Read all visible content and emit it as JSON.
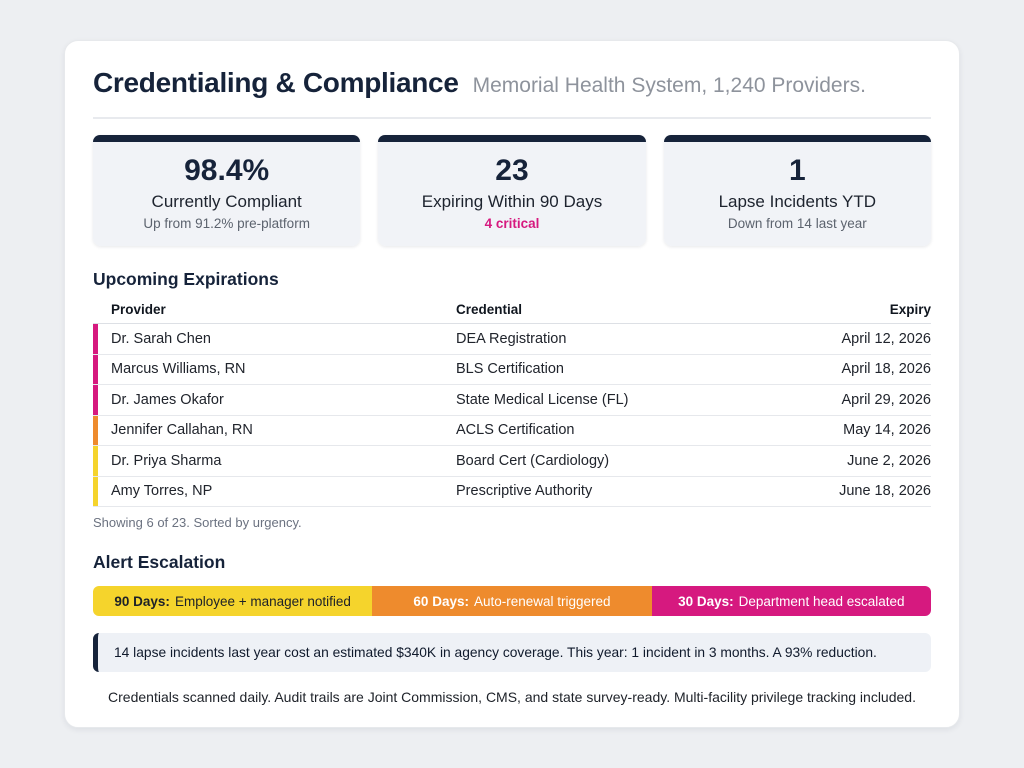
{
  "header": {
    "title": "Credentialing & Compliance",
    "subtitle": "Memorial Health System, 1,240 Providers."
  },
  "colors": {
    "navy": "#16233a",
    "pink": "#d6197f",
    "orange": "#ee8b2d",
    "yellow": "#f5d42c",
    "muted_gray": "#5c636e",
    "white": "#ffffff",
    "dark_text": "#1d2430"
  },
  "stats": [
    {
      "value": "98.4%",
      "label": "Currently Compliant",
      "note": "Up from 91.2% pre-platform",
      "note_color": "#5c636e"
    },
    {
      "value": "23",
      "label": "Expiring Within 90 Days",
      "note": "4 critical",
      "note_color": "#d6197f"
    },
    {
      "value": "1",
      "label": "Lapse Incidents YTD",
      "note": "Down from 14 last year",
      "note_color": "#5c636e"
    }
  ],
  "expirations": {
    "heading": "Upcoming Expirations",
    "columns": [
      "Provider",
      "Credential",
      "Expiry"
    ],
    "rows": [
      {
        "provider": "Dr. Sarah Chen",
        "credential": "DEA Registration",
        "expiry": "April 12, 2026",
        "accent": "#d6197f"
      },
      {
        "provider": "Marcus Williams, RN",
        "credential": "BLS Certification",
        "expiry": "April 18, 2026",
        "accent": "#d6197f"
      },
      {
        "provider": "Dr. James Okafor",
        "credential": "State Medical License (FL)",
        "expiry": "April 29, 2026",
        "accent": "#d6197f"
      },
      {
        "provider": "Jennifer Callahan, RN",
        "credential": "ACLS Certification",
        "expiry": "May 14, 2026",
        "accent": "#ee8b2d"
      },
      {
        "provider": "Dr. Priya Sharma",
        "credential": "Board Cert (Cardiology)",
        "expiry": "June 2, 2026",
        "accent": "#f5d42c"
      },
      {
        "provider": "Amy Torres, NP",
        "credential": "Prescriptive Authority",
        "expiry": "June 18, 2026",
        "accent": "#f5d42c"
      }
    ],
    "footnote": "Showing 6 of 23. Sorted by urgency."
  },
  "escalation": {
    "heading": "Alert Escalation",
    "segments": [
      {
        "label": "90 Days:",
        "text": "Employee + manager notified",
        "bg": "#f5d42c",
        "fg": "#1d2128"
      },
      {
        "label": "60 Days:",
        "text": "Auto-renewal triggered",
        "bg": "#ee8b2d",
        "fg": "#ffffff"
      },
      {
        "label": "30 Days:",
        "text": "Department head escalated",
        "bg": "#d6197f",
        "fg": "#ffffff"
      }
    ]
  },
  "callout": {
    "text": "14 lapse incidents last year cost an estimated $340K in agency coverage. This year: 1 incident in 3 months. A 93% reduction."
  },
  "footer": {
    "text": "Credentials scanned daily. Audit trails are Joint Commission, CMS, and state survey-ready. Multi-facility privilege tracking included."
  }
}
